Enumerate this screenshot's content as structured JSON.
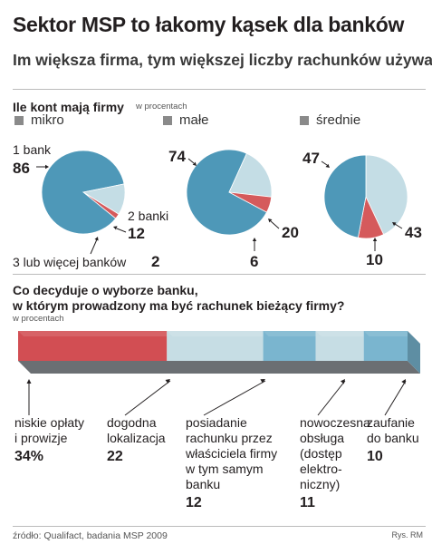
{
  "header": {
    "title": "Sektor MSP to łakomy kąsek dla banków",
    "subtitle": "Im większa firma, tym większej liczby rachunków używa"
  },
  "section1": {
    "question": "Ile kont mają firmy",
    "unit": "w procentach",
    "legend": [
      "mikro",
      "małe",
      "średnie"
    ]
  },
  "section2": {
    "question_line1": "Co decyduje o wyborze banku,",
    "question_line2": "w którym prowadzony ma być rachunek bieżący  firmy?",
    "unit": "w procentach"
  },
  "footer": {
    "source": "źródło: Qualifact, badania MSP 2009",
    "credit": "Rys. RM"
  },
  "colors": {
    "one_bank": "#4e98b8",
    "two_banks": "#c4dde5",
    "three_plus": "#d55a5c",
    "bar_red": "#d24e53",
    "bar_light": "#c6dde4",
    "bar_blue": "#7ab5cf",
    "legend_gray": "#8a8a8a"
  },
  "chart_data": [
    {
      "type": "pie",
      "name": "mikro",
      "categories": [
        "1 bank",
        "2 banki",
        "3 lub więcej banków"
      ],
      "values": [
        86,
        12,
        2
      ],
      "value_labels": [
        "86",
        "12",
        "2"
      ],
      "category_labels": [
        "1 bank",
        "2 banki",
        "3 lub więcej banków"
      ]
    },
    {
      "type": "pie",
      "name": "małe",
      "categories": [
        "1 bank",
        "2 banki",
        "3 lub więcej banków"
      ],
      "values": [
        74,
        20,
        6
      ],
      "value_labels": [
        "74",
        "20",
        "6"
      ]
    },
    {
      "type": "pie",
      "name": "średnie",
      "categories": [
        "1 bank",
        "2 banki",
        "3 lub więcej banków"
      ],
      "values": [
        47,
        43,
        10
      ],
      "value_labels": [
        "47",
        "43",
        "10"
      ]
    },
    {
      "type": "bar",
      "orientation": "stacked-horizontal",
      "categories": [
        "niskie opłaty i prowizje",
        "dogodna lokalizacja",
        "posiadanie rachunku przez właściciela firmy w tym samym banku",
        "nowoczesna obsługa (dostęp elektroniczny)",
        "zaufanie do banku"
      ],
      "values": [
        34,
        22,
        12,
        11,
        10
      ],
      "items": [
        {
          "label": [
            "niskie opłaty",
            "i prowizje"
          ],
          "value_text": "34%"
        },
        {
          "label": [
            "dogodna",
            "lokalizacja"
          ],
          "value_text": "22"
        },
        {
          "label": [
            "posiadanie",
            "rachunku przez",
            "właściciela firmy",
            "w tym samym",
            "banku"
          ],
          "value_text": "12"
        },
        {
          "label": [
            "nowoczesna",
            "obsługa",
            "(dostęp",
            "elektro-",
            "niczny)"
          ],
          "value_text": "11"
        },
        {
          "label": [
            "zaufanie",
            "do banku"
          ],
          "value_text": "10"
        }
      ]
    }
  ]
}
